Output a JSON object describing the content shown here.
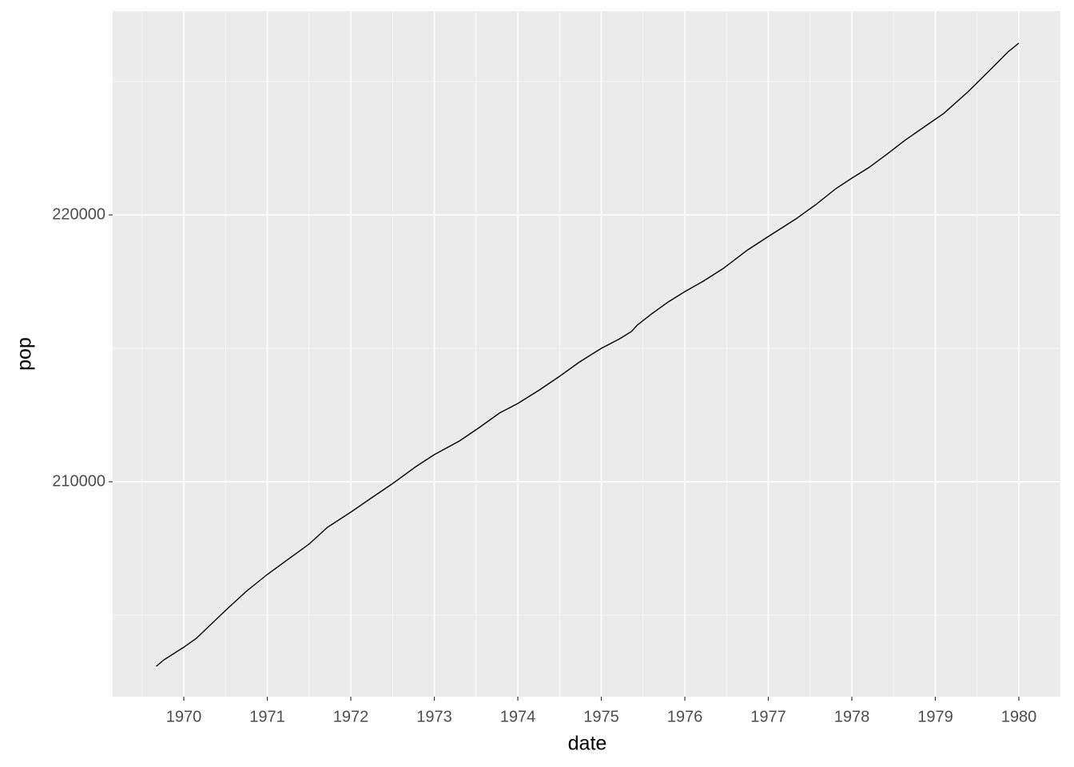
{
  "chart_data": {
    "type": "line",
    "x_label": "date",
    "y_label": "pop",
    "x": [
      1969.67,
      1969.76,
      1970.0,
      1970.15,
      1970.5,
      1970.75,
      1971.0,
      1971.25,
      1971.5,
      1971.72,
      1972.0,
      1972.25,
      1972.49,
      1972.78,
      1973.0,
      1973.3,
      1973.54,
      1973.78,
      1974.0,
      1974.26,
      1974.5,
      1974.74,
      1975.0,
      1975.22,
      1975.36,
      1975.43,
      1975.6,
      1975.8,
      1976.0,
      1976.22,
      1976.46,
      1976.75,
      1977.0,
      1977.33,
      1977.57,
      1977.81,
      1978.0,
      1978.2,
      1978.42,
      1978.63,
      1978.92,
      1979.1,
      1979.39,
      1979.68,
      1979.87,
      1980.0
    ],
    "series": [
      {
        "name": "pop",
        "color": "#000000",
        "values": [
          203084,
          203323,
          203802,
          204132,
          205180,
          205898,
          206527,
          207096,
          207665,
          208293,
          208862,
          209401,
          209910,
          210569,
          211018,
          211527,
          212036,
          212575,
          212934,
          213443,
          213952,
          214491,
          215000,
          215359,
          215629,
          215868,
          216287,
          216737,
          217126,
          217515,
          217994,
          218683,
          219192,
          219850,
          220389,
          220988,
          221377,
          221766,
          222275,
          222784,
          223413,
          223802,
          224611,
          225509,
          226108,
          226437
        ]
      }
    ],
    "xlim": [
      1969.148,
      1980.498
    ],
    "xticks": [
      1970,
      1971,
      1972,
      1973,
      1974,
      1975,
      1976,
      1977,
      1978,
      1979,
      1980
    ],
    "xminorticks": [
      1969.5,
      1970.5,
      1971.5,
      1972.5,
      1973.5,
      1974.5,
      1975.5,
      1976.5,
      1977.5,
      1978.5,
      1979.5
    ],
    "ylim": [
      201946,
      227635
    ],
    "yticks": [
      210000,
      220000
    ],
    "yminorticks": [
      205000,
      215000,
      225000
    ],
    "grid": true
  }
}
